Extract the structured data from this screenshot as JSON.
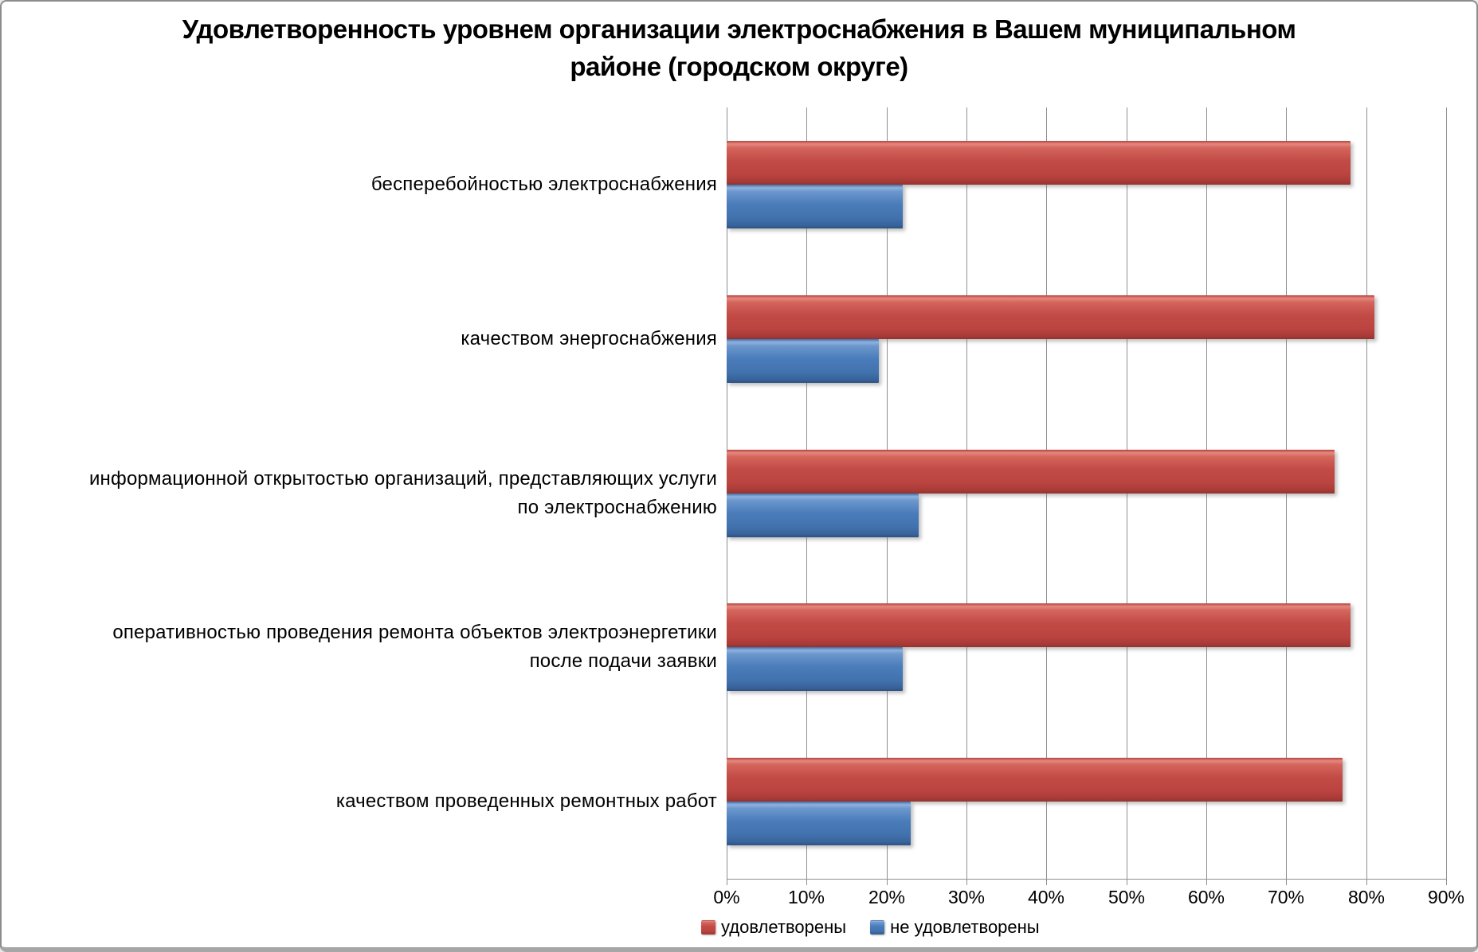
{
  "title": "Удовлетворенность уровнем организации электроснабжения в Вашем муниципальном районе (городском округе)",
  "chart_data": {
    "type": "bar",
    "orientation": "horizontal",
    "title": "Удовлетворенность уровнем организации электроснабжения в Вашем муниципальном районе (городском округе)",
    "categories": [
      "бесперебойностью  электроснабжения",
      "качеством энергоснабжения",
      "информационной открытостью организаций, представляющих услуги по электроснабжению",
      "оперативностью проведения ремонта объектов электроэнергетики после подачи заявки",
      "качеством проведенных ремонтных работ"
    ],
    "series": [
      {
        "name": "удовлетворены",
        "color": "#c0504d",
        "values": [
          78,
          81,
          76,
          78,
          77
        ]
      },
      {
        "name": "не удовлетворены",
        "color": "#4f81bd",
        "values": [
          22,
          19,
          24,
          22,
          23
        ]
      }
    ],
    "xlabel": "",
    "ylabel": "",
    "xlim": [
      0,
      90
    ],
    "x_ticks": [
      "0%",
      "10%",
      "20%",
      "30%",
      "40%",
      "50%",
      "60%",
      "70%",
      "80%",
      "90%"
    ],
    "grid": true,
    "legend_position": "bottom",
    "axis_color": "#8f8f8f",
    "background": "#ffffff"
  }
}
